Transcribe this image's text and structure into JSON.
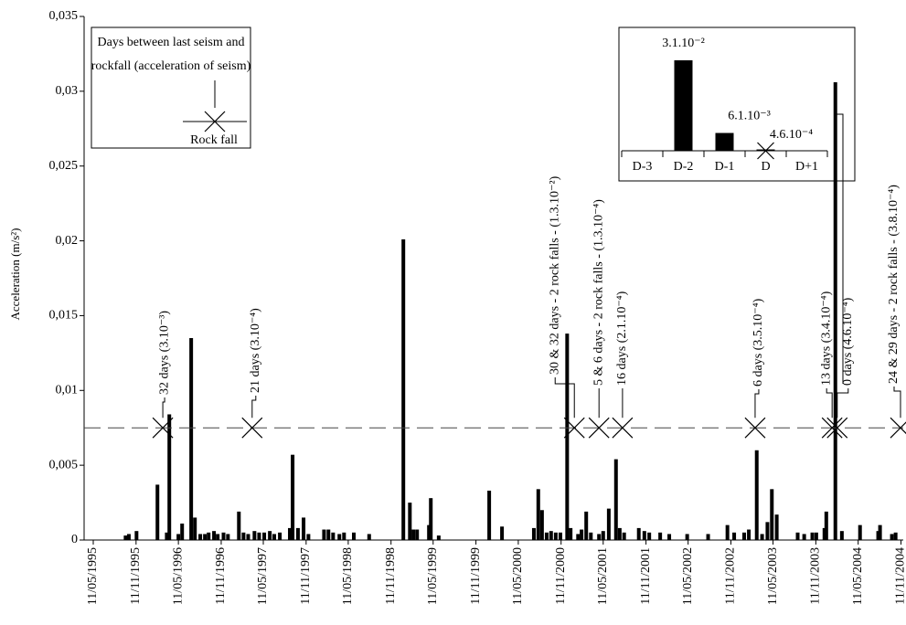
{
  "chart_data": {
    "type": "bar",
    "y_label": "Acceleration (m/s²)",
    "color": "#000000",
    "xlim": [
      "11/05/1995",
      "11/11/2004"
    ],
    "xticks": [
      "11/05/1995",
      "11/11/1995",
      "11/05/1996",
      "11/11/1996",
      "11/05/1997",
      "11/11/1997",
      "11/05/1998",
      "11/11/1998",
      "11/05/1999",
      "11/11/1999",
      "11/05/2000",
      "11/11/2000",
      "11/05/2001",
      "11/11/2001",
      "11/05/2002",
      "11/11/2002",
      "11/05/2003",
      "11/11/2003",
      "11/05/2004",
      "11/11/2004"
    ],
    "ylim": [
      0,
      0.035
    ],
    "yticks": [
      0,
      {
        "value": 0.005,
        "label": "0,005"
      },
      {
        "value": 0.01,
        "label": "0,01"
      },
      {
        "value": 0.015,
        "label": "0,015"
      },
      {
        "value": 0.02,
        "label": "0,02"
      },
      {
        "value": 0.025,
        "label": "0,025"
      },
      {
        "value": 0.03,
        "label": "0,03"
      },
      {
        "value": 0.035,
        "label": "0,035"
      }
    ],
    "x": [
      "27/09/1995",
      "11/10/1995",
      "13/11/1995",
      "11/02/1996",
      "22/03/1996",
      "02/04/1996",
      "11/05/1996",
      "27/05/1996",
      "05/07/1996",
      "21/07/1996",
      "13/08/1996",
      "02/09/1996",
      "18/09/1996",
      "11/10/1996",
      "27/10/1996",
      "21/11/1996",
      "10/12/1996",
      "26/01/1997",
      "15/02/1997",
      "07/03/1997",
      "03/04/1997",
      "23/04/1997",
      "15/05/1997",
      "08/06/1997",
      "27/06/1997",
      "21/07/1997",
      "02/09/1997",
      "14/09/1997",
      "07/10/1997",
      "31/10/1997",
      "21/11/1997",
      "27/01/1998",
      "15/02/1998",
      "07/03/1998",
      "03/04/1998",
      "23/04/1998",
      "04/06/1998",
      "09/08/1998",
      "03/01/1999",
      "31/01/1999",
      "15/02/1999",
      "03/03/1999",
      "23/04/1999",
      "01/05/1999",
      "04/06/1999",
      "07/01/2000",
      "02/03/2000",
      "17/07/2000",
      "05/08/2000",
      "21/08/2000",
      "10/09/2000",
      "29/09/2000",
      "19/10/2000",
      "08/11/2000",
      "07/12/2000",
      "22/12/2000",
      "23/01/2001",
      "07/02/2001",
      "27/02/2001",
      "19/03/2001",
      "23/04/2001",
      "11/05/2001",
      "04/06/2001",
      "05/07/2001",
      "21/07/2001",
      "09/08/2001",
      "11/10/2001",
      "04/11/2001",
      "25/11/2001",
      "11/01/2002",
      "19/02/2002",
      "07/05/2002",
      "05/08/2002",
      "27/10/2002",
      "25/11/2002",
      "07/01/2003",
      "27/01/2003",
      "02/03/2003",
      "25/03/2003",
      "17/04/2003",
      "06/05/2003",
      "27/05/2003",
      "25/08/2003",
      "22/09/2003",
      "27/10/2003",
      "13/11/2003",
      "18/12/2003",
      "26/12/2003",
      "03/02/2004",
      "02/03/2004",
      "19/05/2004",
      "05/08/2004",
      "13/08/2004",
      "03/10/2004",
      "19/10/2004"
    ],
    "values": [
      0.0003,
      0.0004,
      0.0006,
      0.0037,
      0.0005,
      0.0084,
      0.0004,
      0.0011,
      0.0135,
      0.0015,
      0.0004,
      0.0004,
      0.0005,
      0.0006,
      0.0004,
      0.0005,
      0.0004,
      0.0019,
      0.0005,
      0.0004,
      0.0006,
      0.0005,
      0.0005,
      0.0006,
      0.0004,
      0.0005,
      0.0008,
      0.0057,
      0.0008,
      0.0015,
      0.0004,
      0.0007,
      0.0007,
      0.0005,
      0.0004,
      0.0005,
      0.0005,
      0.0004,
      0.0201,
      0.0025,
      0.0007,
      0.0007,
      0.001,
      0.0028,
      0.0003,
      0.0033,
      0.0009,
      0.0008,
      0.0034,
      0.002,
      0.0005,
      0.0006,
      0.0005,
      0.0005,
      0.0138,
      0.0008,
      0.0004,
      0.0007,
      0.0019,
      0.0005,
      0.0004,
      0.0006,
      0.0021,
      0.0054,
      0.0008,
      0.0005,
      0.0008,
      0.0006,
      0.0005,
      0.0005,
      0.0004,
      0.0004,
      0.0004,
      0.001,
      0.0005,
      0.0005,
      0.0007,
      0.006,
      0.0004,
      0.0012,
      0.0034,
      0.0017,
      0.0005,
      0.0004,
      0.0005,
      0.0005,
      0.0008,
      0.0019,
      0.0306,
      0.0006,
      0.001,
      0.0006,
      0.001,
      0.0004,
      0.0005
    ],
    "rockfall_level": 0.0075,
    "annotations": [
      {
        "x": "05/03/1996",
        "label": "32 days (3.10⁻³)"
      },
      {
        "x": "24/03/1997",
        "label": "21 days (3.10⁻⁴)"
      },
      {
        "x": "07/01/2001",
        "label": "30 & 32 days - 2 rock falls - (1.3.10⁻²)"
      },
      {
        "x": "23/04/2001",
        "label": "5 & 6 days - 2 rock falls - (1.3.10⁻⁴)"
      },
      {
        "x": "02/08/2001",
        "label": "16 days (2.1.10⁻⁴)"
      },
      {
        "x": "23/02/2003",
        "label": "6 days (3.5.10⁻⁴)"
      },
      {
        "x": "20/01/2004",
        "label": "13 days (3.4.10⁻⁴)"
      },
      {
        "x": "11/02/2004",
        "label": "0 days (4.6.10⁻⁴)"
      },
      {
        "x": "09/11/2004",
        "label": "24 & 29 days - 2 rock falls - (3.8.10⁻⁴)"
      }
    ],
    "legend": {
      "lines": [
        "Days between last seism and",
        "rockfall (acceleration of seism)"
      ],
      "marker_label": "Rock fall"
    },
    "inset": {
      "type": "bar",
      "categories": [
        "D-3",
        "D-2",
        "D-1",
        "D",
        "D+1"
      ],
      "values": [
        null,
        0.031,
        0.0061,
        0.00046,
        null
      ],
      "value_labels": [
        null,
        "3.1.10⁻²",
        "6.1.10⁻³",
        "4.6.10⁻⁴",
        null
      ],
      "color": "#000000",
      "rockfall": "D"
    }
  }
}
